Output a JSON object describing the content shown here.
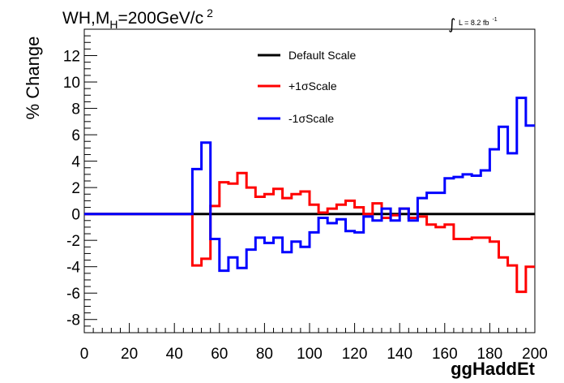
{
  "chart_data": {
    "type": "line",
    "title_parts": {
      "main": "WH,M",
      "sub": "H",
      "mid": "=200GeV/c",
      "sup": "2"
    },
    "lumi_parts": {
      "integral": "∫",
      "text": "L = 8.2 fb",
      "sup": "-1"
    },
    "xlabel": "ggHaddEt",
    "ylabel": "% Change",
    "xlim": [
      0,
      200
    ],
    "ylim": [
      -9,
      14
    ],
    "xticks": [
      0,
      20,
      40,
      60,
      80,
      100,
      120,
      140,
      160,
      180,
      200
    ],
    "yticks": [
      -8,
      -6,
      -4,
      -2,
      0,
      2,
      4,
      6,
      8,
      10,
      12
    ],
    "grid": false,
    "legend_position": "top-center",
    "bin_edges": [
      0,
      4,
      8,
      12,
      16,
      20,
      24,
      28,
      32,
      36,
      40,
      44,
      48,
      52,
      56,
      60,
      64,
      68,
      72,
      76,
      80,
      84,
      88,
      92,
      96,
      100,
      104,
      108,
      112,
      116,
      120,
      124,
      128,
      132,
      136,
      140,
      144,
      148,
      152,
      156,
      160,
      164,
      168,
      172,
      176,
      180,
      184,
      188,
      192,
      196,
      200
    ],
    "series": [
      {
        "name": "Default Scale",
        "color": "#000000",
        "values": [
          0,
          0,
          0,
          0,
          0,
          0,
          0,
          0,
          0,
          0,
          0,
          0,
          0,
          0,
          0,
          0,
          0,
          0,
          0,
          0,
          0,
          0,
          0,
          0,
          0,
          0,
          0,
          0,
          0,
          0,
          0,
          0,
          0,
          0,
          0,
          0,
          0,
          0,
          0,
          0,
          0,
          0,
          0,
          0,
          0,
          0,
          0,
          0,
          0,
          0
        ]
      },
      {
        "name": "+1σScale",
        "color": "#ff0000",
        "values": [
          0,
          0,
          0,
          0,
          0,
          0,
          0,
          0,
          0,
          0,
          0,
          0,
          -3.9,
          -3.4,
          0.6,
          2.4,
          2.3,
          3.1,
          2.0,
          1.3,
          1.5,
          1.9,
          1.2,
          1.5,
          1.7,
          0.7,
          0.1,
          0.4,
          0.7,
          1.0,
          0.5,
          0.0,
          0.8,
          -0.3,
          -0.1,
          0.4,
          -0.3,
          -0.2,
          -0.8,
          -1.0,
          -0.8,
          -1.9,
          -1.9,
          -1.8,
          -1.8,
          -2.1,
          -3.3,
          -3.9,
          -5.9,
          -4.0
        ]
      },
      {
        "name": "-1σScale",
        "color": "#0000ff",
        "values": [
          0,
          0,
          0,
          0,
          0,
          0,
          0,
          0,
          0,
          0,
          0,
          0,
          3.4,
          5.4,
          -1.9,
          -4.3,
          -3.3,
          -4.1,
          -2.7,
          -1.8,
          -2.2,
          -1.8,
          -2.9,
          -2.1,
          -2.5,
          -1.4,
          -0.3,
          -0.7,
          -0.4,
          -1.3,
          -1.4,
          -0.2,
          -0.5,
          0.4,
          -0.5,
          0.4,
          -0.5,
          1.2,
          1.6,
          1.6,
          2.7,
          2.8,
          3.0,
          2.9,
          3.3,
          4.9,
          6.6,
          4.6,
          8.8,
          6.7
        ]
      }
    ]
  }
}
